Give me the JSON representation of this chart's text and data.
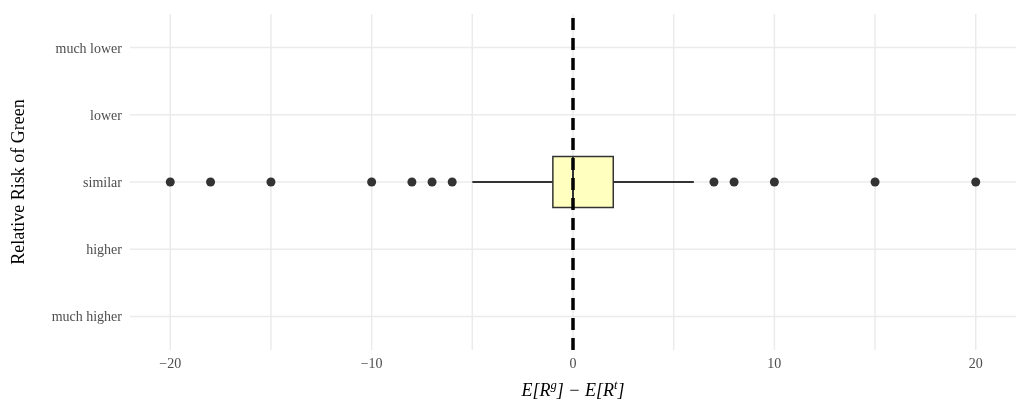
{
  "chart_data": {
    "type": "box",
    "orientation": "horizontal",
    "ylabel": "Relative Risk of Green",
    "xlabel": "E[R$^{g}$] − E[R$^{t}$]",
    "categories": [
      "much lower",
      "lower",
      "similar",
      "higher",
      "much higher"
    ],
    "boxes": [
      null,
      null,
      {
        "low": -5,
        "q1": -1,
        "median": 0,
        "q3": 2,
        "high": 6,
        "outliers": [
          -20,
          -18,
          -15,
          -10,
          -8,
          -7,
          -6,
          7,
          8,
          10,
          15,
          20
        ]
      },
      null,
      null
    ],
    "color": "#ffffc0",
    "xlim": [
      -22,
      22
    ],
    "xticks": [
      -20,
      {
        "value": -15,
        "label": null
      },
      -10,
      {
        "value": -5,
        "label": null
      },
      0,
      {
        "value": 5,
        "label": null
      },
      10,
      {
        "value": 15,
        "label": null
      },
      20
    ],
    "ref_lines": [
      {
        "axis": "x",
        "value": 0,
        "color": "#000000",
        "line_style": "dashed"
      }
    ],
    "grid": true
  }
}
